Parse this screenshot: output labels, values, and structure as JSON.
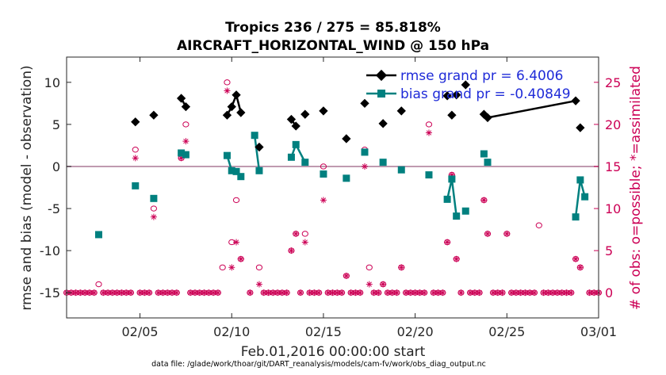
{
  "chart_data": {
    "type": "line",
    "title_line1": "Tropics 236 / 275 = 85.818%",
    "title_line2": "AIRCRAFT_HORIZONTAL_WIND @ 150 hPa",
    "ylabel_left": "rmse and bias (model - observation)",
    "ylabel_right": "# of obs: o=possible; *=assimilated",
    "xlabel": "Feb.01,2016 00:00:00 start",
    "footer": "data file: /glade/work/thoar/git/DART_reanalysis/models/cam-fv/work/obs_diag_output.nc",
    "x_range": [
      1.0,
      30.0
    ],
    "ylim_left": [
      -18,
      13
    ],
    "ylim_right": [
      -3,
      28
    ],
    "x_ticks": [
      {
        "value": 5,
        "label": "02/05"
      },
      {
        "value": 10,
        "label": "02/10"
      },
      {
        "value": 15,
        "label": "02/15"
      },
      {
        "value": 20,
        "label": "02/20"
      },
      {
        "value": 25,
        "label": "02/25"
      },
      {
        "value": 30,
        "label": "03/01"
      }
    ],
    "y_ticks_left": [
      10,
      5,
      0,
      -5,
      -10,
      -15
    ],
    "y_ticks_right": [
      25,
      20,
      15,
      10,
      5,
      0
    ],
    "series": [
      {
        "name": "rmse grand pr = 6.4006",
        "color": "#000000",
        "marker": "diamond",
        "points": [
          [
            4.75,
            5.3
          ],
          [
            5.75,
            6.1
          ],
          [
            7.25,
            8.1
          ],
          [
            7.5,
            7.1
          ],
          [
            9.75,
            6.1
          ],
          [
            10.0,
            7.1
          ],
          [
            10.25,
            8.5
          ],
          [
            10.5,
            6.4
          ],
          [
            11.5,
            2.3
          ],
          [
            13.25,
            5.6
          ],
          [
            13.5,
            4.8
          ],
          [
            14.0,
            6.2
          ],
          [
            15.0,
            6.6
          ],
          [
            16.25,
            3.3
          ],
          [
            17.25,
            7.5
          ],
          [
            18.25,
            5.1
          ],
          [
            19.25,
            6.6
          ],
          [
            21.75,
            8.4
          ],
          [
            22.0,
            6.1
          ],
          [
            22.25,
            8.5
          ],
          [
            22.75,
            9.7
          ],
          [
            23.75,
            6.2
          ],
          [
            23.95,
            5.8
          ],
          [
            28.75,
            7.8
          ],
          [
            29.0,
            4.6
          ]
        ],
        "segments": [
          [
            2,
            3
          ],
          [
            4,
            5,
            6,
            7
          ],
          [
            8
          ],
          [
            9,
            10
          ],
          [
            11
          ],
          [
            21,
            22,
            23
          ],
          [
            24
          ]
        ]
      },
      {
        "name": "bias grand pr = -0.40849",
        "color": "#00807f",
        "marker": "square",
        "points": [
          [
            2.75,
            -8.1
          ],
          [
            4.75,
            -2.3
          ],
          [
            5.75,
            -3.8
          ],
          [
            7.25,
            1.6
          ],
          [
            7.5,
            1.4
          ],
          [
            9.75,
            1.3
          ],
          [
            10.0,
            -0.5
          ],
          [
            10.25,
            -0.6
          ],
          [
            10.5,
            -1.2
          ],
          [
            11.25,
            3.7
          ],
          [
            11.5,
            -0.5
          ],
          [
            13.25,
            1.1
          ],
          [
            13.5,
            2.6
          ],
          [
            14.0,
            0.5
          ],
          [
            15.0,
            -0.9
          ],
          [
            16.25,
            -1.4
          ],
          [
            17.25,
            1.7
          ],
          [
            18.25,
            0.5
          ],
          [
            19.25,
            -0.4
          ],
          [
            20.75,
            -1.0
          ],
          [
            21.75,
            -3.9
          ],
          [
            22.0,
            -1.5
          ],
          [
            22.25,
            -5.9
          ],
          [
            22.75,
            -5.3
          ],
          [
            23.75,
            1.5
          ],
          [
            23.95,
            0.5
          ],
          [
            28.75,
            -6.0
          ],
          [
            29.0,
            -1.6
          ],
          [
            29.25,
            -3.6
          ]
        ],
        "segments": [
          [
            3,
            4
          ],
          [
            5,
            6,
            7,
            8
          ],
          [
            9,
            10
          ],
          [
            11,
            12,
            13
          ],
          [
            20,
            21,
            22
          ],
          [
            23
          ],
          [
            26,
            27,
            28
          ]
        ]
      }
    ],
    "obs_possible": {
      "name": "possible",
      "color": "#cc0055",
      "counts": [
        [
          2.75,
          1
        ],
        [
          4.75,
          17
        ],
        [
          5.75,
          10
        ],
        [
          7.25,
          16
        ],
        [
          7.5,
          20
        ],
        [
          9.5,
          3
        ],
        [
          9.75,
          25
        ],
        [
          10.0,
          6
        ],
        [
          10.25,
          11
        ],
        [
          10.5,
          4
        ],
        [
          11.5,
          3
        ],
        [
          13.25,
          5
        ],
        [
          13.5,
          7
        ],
        [
          14.0,
          7
        ],
        [
          15.0,
          15
        ],
        [
          16.25,
          2
        ],
        [
          17.25,
          17
        ],
        [
          17.5,
          3
        ],
        [
          18.25,
          1
        ],
        [
          19.25,
          3
        ],
        [
          20.75,
          20
        ],
        [
          21.75,
          6
        ],
        [
          22.0,
          14
        ],
        [
          22.25,
          4
        ],
        [
          23.75,
          11
        ],
        [
          23.95,
          7
        ],
        [
          25.0,
          7
        ],
        [
          26.75,
          8
        ],
        [
          28.75,
          4
        ],
        [
          29.0,
          3
        ]
      ]
    },
    "obs_assimilated": {
      "name": "assimilated",
      "color": "#cc0055",
      "counts": [
        [
          4.75,
          16
        ],
        [
          5.75,
          9
        ],
        [
          7.25,
          16
        ],
        [
          7.5,
          18
        ],
        [
          9.75,
          24
        ],
        [
          10.0,
          3
        ],
        [
          10.25,
          6
        ],
        [
          10.5,
          4
        ],
        [
          11.5,
          1
        ],
        [
          13.25,
          5
        ],
        [
          13.5,
          7
        ],
        [
          14.0,
          6
        ],
        [
          15.0,
          11
        ],
        [
          16.25,
          2
        ],
        [
          17.25,
          15
        ],
        [
          17.5,
          1
        ],
        [
          18.25,
          1
        ],
        [
          19.25,
          3
        ],
        [
          20.75,
          19
        ],
        [
          21.75,
          6
        ],
        [
          22.0,
          14
        ],
        [
          22.25,
          4
        ],
        [
          23.75,
          11
        ],
        [
          23.95,
          7
        ],
        [
          25.0,
          7
        ],
        [
          28.75,
          4
        ],
        [
          29.0,
          3
        ]
      ]
    },
    "zero_count_days_x": [
      1.0,
      1.25,
      1.5,
      1.75,
      2.0,
      2.25,
      2.5,
      3.0,
      3.25,
      3.5,
      3.75,
      4.0,
      4.25,
      4.5,
      5.0,
      5.25,
      5.5,
      6.0,
      6.25,
      6.5,
      6.75,
      7.0,
      7.75,
      8.0,
      8.25,
      8.5,
      8.75,
      9.0,
      9.25,
      11.0,
      11.75,
      12.0,
      12.25,
      12.5,
      12.75,
      13.0,
      13.75,
      14.25,
      14.5,
      14.75,
      15.25,
      15.5,
      15.75,
      16.0,
      16.5,
      16.75,
      17.0,
      17.75,
      18.0,
      18.5,
      18.75,
      19.0,
      19.5,
      19.75,
      20.0,
      20.25,
      20.5,
      21.0,
      21.25,
      21.5,
      22.5,
      23.0,
      23.25,
      23.5,
      24.25,
      24.5,
      24.75,
      25.25,
      25.5,
      25.75,
      26.0,
      26.25,
      26.5,
      27.0,
      27.25,
      27.5,
      27.75,
      28.0,
      28.25,
      28.5,
      29.5,
      29.75,
      30.0
    ]
  }
}
